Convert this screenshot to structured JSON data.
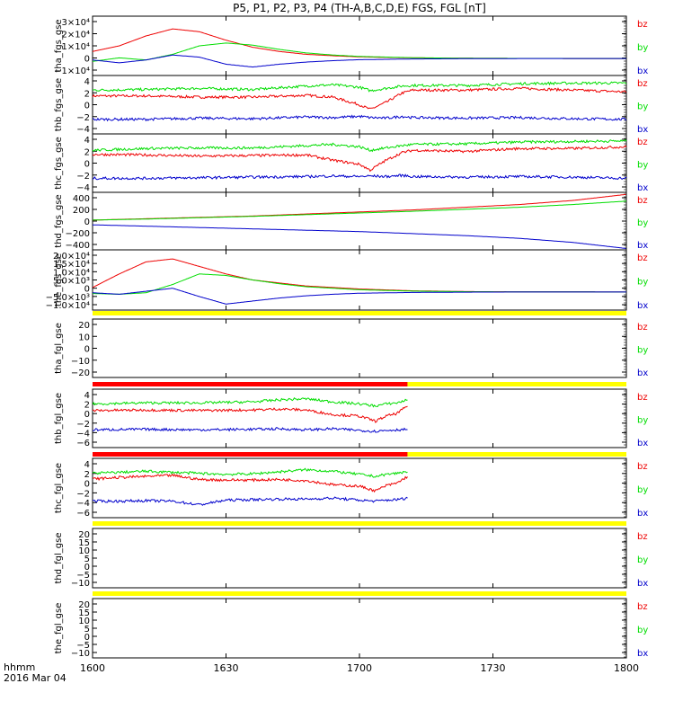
{
  "title": "P5, P1, P2, P3, P4 (TH-A,B,C,D,E) FGS, FGL [nT]",
  "x_axis": {
    "ticks": [
      "1600",
      "1630",
      "1700",
      "1730",
      "1800"
    ],
    "label_top": "hhmm",
    "label_bottom": "2016 Mar 04"
  },
  "colors": {
    "bz": "#ee0000",
    "by": "#00dd00",
    "bx": "#0000cc",
    "flag_yellow": "#ffff00",
    "flag_red": "#ff0000"
  },
  "chart_data": [
    {
      "type": "line",
      "name": "tha_fgs_gse",
      "ylim": [
        -12000,
        30000
      ],
      "yticks": [
        "3×10⁴",
        "2×10⁴",
        "1×10⁴",
        "0",
        "−1×10⁴"
      ],
      "legend": [
        "bz",
        "by",
        "bx"
      ],
      "x_fraction": [
        0,
        0.05,
        0.1,
        0.15,
        0.2,
        0.25,
        0.3,
        0.35,
        0.4,
        0.45,
        0.5,
        0.6,
        0.7,
        0.8,
        0.9,
        1
      ],
      "series": [
        {
          "name": "bz",
          "values": [
            5000,
            9000,
            16000,
            21000,
            19000,
            13000,
            8000,
            5000,
            3000,
            2000,
            1200,
            500,
            200,
            100,
            50,
            0
          ]
        },
        {
          "name": "by",
          "values": [
            -2000,
            500,
            -1000,
            3000,
            9000,
            11000,
            9500,
            6500,
            4000,
            2500,
            1500,
            600,
            200,
            100,
            50,
            0
          ]
        },
        {
          "name": "bx",
          "values": [
            -1000,
            -3000,
            -1000,
            2500,
            1000,
            -4000,
            -6000,
            -4000,
            -2500,
            -1500,
            -800,
            -300,
            -100,
            0,
            0,
            0
          ]
        }
      ]
    },
    {
      "type": "line",
      "name": "thb_fgs_gse",
      "ylim": [
        -6,
        4
      ],
      "yticks": [
        "4",
        "2",
        "0",
        "−2",
        "−4"
      ],
      "legend": [
        "bz",
        "by",
        "bx"
      ],
      "x_fraction": [
        0,
        0.1,
        0.2,
        0.3,
        0.4,
        0.45,
        0.5,
        0.52,
        0.55,
        0.58,
        0.6,
        0.7,
        0.8,
        0.9,
        1
      ],
      "series": [
        {
          "name": "bz",
          "values": [
            0.5,
            0.5,
            0.3,
            0.3,
            0.6,
            0.3,
            -1,
            -1.8,
            -0.6,
            1,
            1.5,
            1.5,
            1.8,
            1.5,
            1.2
          ]
        },
        {
          "name": "by",
          "values": [
            1.5,
            1.6,
            1.8,
            1.6,
            2.2,
            2.4,
            2,
            1.4,
            1.8,
            2.2,
            2.3,
            2.3,
            2.6,
            2.7,
            2.7
          ]
        },
        {
          "name": "bx",
          "values": [
            -3.5,
            -3.5,
            -3.3,
            -3.4,
            -3.1,
            -3.2,
            -3.0,
            -3.2,
            -3.3,
            -3.0,
            -3.2,
            -3.3,
            -3.2,
            -3.4,
            -3.5
          ]
        }
      ]
    },
    {
      "type": "line",
      "name": "thc_fgs_gse",
      "ylim": [
        -6,
        4
      ],
      "yticks": [
        "4",
        "2",
        "0",
        "−2",
        "−4"
      ],
      "legend": [
        "bz",
        "by",
        "bx"
      ],
      "x_fraction": [
        0,
        0.1,
        0.2,
        0.3,
        0.4,
        0.45,
        0.5,
        0.52,
        0.55,
        0.58,
        0.6,
        0.7,
        0.8,
        0.9,
        1
      ],
      "series": [
        {
          "name": "bz",
          "values": [
            0.5,
            0.4,
            0.2,
            0.3,
            0.4,
            -0.5,
            -1.2,
            -2.2,
            -0.5,
            0.8,
            1.2,
            1,
            1.5,
            1.5,
            1.8
          ]
        },
        {
          "name": "by",
          "values": [
            1.2,
            1.5,
            1.6,
            1.6,
            2,
            2.2,
            1.8,
            1.2,
            1.6,
            2,
            2.2,
            2.3,
            2.6,
            2.7,
            2.8
          ]
        },
        {
          "name": "bx",
          "values": [
            -3.6,
            -3.6,
            -3.5,
            -3.4,
            -3.3,
            -3.2,
            -3.3,
            -3.2,
            -3.3,
            -3.1,
            -3.3,
            -3.4,
            -3.3,
            -3.4,
            -3.6
          ]
        }
      ]
    },
    {
      "type": "line",
      "name": "thd_fgs_gse",
      "ylim": [
        -400,
        450
      ],
      "yticks": [
        "400",
        "200",
        "0",
        "−200",
        "−400"
      ],
      "legend": [
        "bz",
        "by",
        "bx"
      ],
      "x_fraction": [
        0,
        0.1,
        0.2,
        0.3,
        0.4,
        0.5,
        0.6,
        0.7,
        0.8,
        0.9,
        1
      ],
      "series": [
        {
          "name": "bz",
          "values": [
            40,
            60,
            80,
            100,
            130,
            160,
            190,
            230,
            270,
            330,
            420
          ]
        },
        {
          "name": "by",
          "values": [
            40,
            55,
            75,
            95,
            120,
            145,
            170,
            200,
            230,
            270,
            320
          ]
        },
        {
          "name": "bx",
          "values": [
            -30,
            -50,
            -70,
            -90,
            -110,
            -130,
            -160,
            -190,
            -230,
            -290,
            -380
          ]
        }
      ]
    },
    {
      "type": "line",
      "name": "the_fgs_gse",
      "ylim": [
        -12000,
        28000
      ],
      "yticks": [
        "2.0×10⁴",
        "1.5×10⁴",
        "1.0×10⁴",
        "5.0×10³",
        "0",
        "−5.0×10³",
        "−1.0×10⁴"
      ],
      "legend": [
        "bz",
        "by",
        "bx"
      ],
      "x_fraction": [
        0,
        0.05,
        0.1,
        0.15,
        0.2,
        0.25,
        0.3,
        0.35,
        0.4,
        0.45,
        0.5,
        0.6,
        0.7,
        0.8,
        0.9,
        1
      ],
      "series": [
        {
          "name": "bz",
          "values": [
            3000,
            12000,
            20000,
            22000,
            17000,
            12000,
            8000,
            6000,
            4000,
            3000,
            2000,
            800,
            300,
            100,
            50,
            0
          ]
        },
        {
          "name": "by",
          "values": [
            -1000,
            -1500,
            -500,
            5000,
            12000,
            11000,
            8000,
            5500,
            3500,
            2500,
            1500,
            600,
            200,
            100,
            50,
            0
          ]
        },
        {
          "name": "bx",
          "values": [
            -500,
            -1500,
            500,
            2500,
            -3000,
            -8000,
            -6000,
            -4000,
            -2500,
            -1500,
            -800,
            -300,
            -100,
            0,
            0,
            0
          ]
        }
      ]
    },
    {
      "type": "line",
      "name": "tha_fgl_gse",
      "ylim": [
        -25,
        25
      ],
      "yticks": [
        "20",
        "10",
        "0",
        "−10",
        "−20"
      ],
      "legend": [
        "bz",
        "by",
        "bx"
      ],
      "flag": [
        {
          "from": 0,
          "to": 1,
          "color": "flag_yellow"
        }
      ],
      "x_fraction": [],
      "series": []
    },
    {
      "type": "line",
      "name": "thb_fgl_gse",
      "ylim": [
        -7,
        4.5
      ],
      "yticks": [
        "4",
        "2",
        "0",
        "−2",
        "−4",
        "−6"
      ],
      "legend": [
        "bz",
        "by",
        "bx"
      ],
      "flag": [
        {
          "from": 0,
          "to": 0.59,
          "color": "flag_red"
        },
        {
          "from": 0.59,
          "to": 1,
          "color": "flag_yellow"
        }
      ],
      "x_fraction": [
        0,
        0.1,
        0.2,
        0.3,
        0.35,
        0.4,
        0.45,
        0.5,
        0.53,
        0.55,
        0.57,
        0.59
      ],
      "series": [
        {
          "name": "bz",
          "values": [
            0.3,
            0.4,
            0.3,
            0.4,
            0.6,
            0.4,
            -0.5,
            -0.8,
            -1.8,
            -0.8,
            -0.3,
            1.2
          ]
        },
        {
          "name": "by",
          "values": [
            1.6,
            1.8,
            1.8,
            2.0,
            2.4,
            2.6,
            2.0,
            1.6,
            1.2,
            1.6,
            1.8,
            2.4
          ]
        },
        {
          "name": "bx",
          "values": [
            -3.5,
            -3.4,
            -3.5,
            -3.4,
            -3.3,
            -3.5,
            -3.3,
            -3.6,
            -3.8,
            -3.6,
            -3.5,
            -3.4
          ]
        }
      ]
    },
    {
      "type": "line",
      "name": "thc_fgl_gse",
      "ylim": [
        -7,
        4.5
      ],
      "yticks": [
        "4",
        "2",
        "0",
        "−2",
        "−4",
        "−6"
      ],
      "legend": [
        "bz",
        "by",
        "bx"
      ],
      "flag": [
        {
          "from": 0,
          "to": 0.59,
          "color": "flag_red"
        },
        {
          "from": 0.59,
          "to": 1,
          "color": "flag_yellow"
        }
      ],
      "x_fraction": [
        0,
        0.05,
        0.1,
        0.15,
        0.2,
        0.25,
        0.3,
        0.35,
        0.4,
        0.45,
        0.5,
        0.53,
        0.55,
        0.57,
        0.59
      ],
      "series": [
        {
          "name": "bz",
          "values": [
            0.5,
            0.8,
            1.0,
            1.2,
            0.4,
            0.3,
            0.3,
            0.4,
            0.2,
            -0.6,
            -0.9,
            -1.8,
            -0.8,
            -0.3,
            1.0
          ]
        },
        {
          "name": "by",
          "values": [
            1.6,
            1.8,
            2.0,
            1.8,
            1.6,
            1.4,
            1.5,
            1.9,
            2.3,
            2.0,
            1.4,
            1.0,
            1.4,
            1.6,
            2.0
          ]
        },
        {
          "name": "bx",
          "values": [
            -3.8,
            -3.8,
            -3.7,
            -3.8,
            -4.5,
            -3.6,
            -3.5,
            -3.4,
            -3.4,
            -3.2,
            -3.6,
            -3.8,
            -3.6,
            -3.5,
            -3.2
          ]
        }
      ]
    },
    {
      "type": "line",
      "name": "thd_fgl_gse",
      "ylim": [
        -12,
        22
      ],
      "yticks": [
        "20",
        "15",
        "10",
        "5",
        "0",
        "−5",
        "−10"
      ],
      "legend": [
        "bz",
        "by",
        "bx"
      ],
      "flag": [
        {
          "from": 0,
          "to": 1,
          "color": "flag_yellow"
        }
      ],
      "x_fraction": [],
      "series": []
    },
    {
      "type": "line",
      "name": "the_fgl_gse",
      "ylim": [
        -12,
        22
      ],
      "yticks": [
        "20",
        "15",
        "10",
        "5",
        "0",
        "−5",
        "−10"
      ],
      "legend": [
        "bz",
        "by",
        "bx"
      ],
      "flag": [
        {
          "from": 0,
          "to": 1,
          "color": "flag_yellow"
        }
      ],
      "x_fraction": [],
      "series": []
    }
  ]
}
